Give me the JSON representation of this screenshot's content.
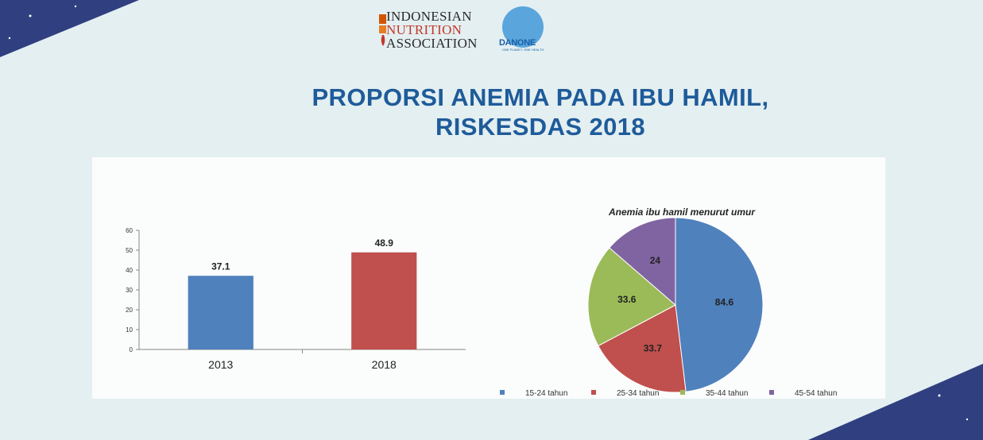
{
  "header": {
    "logo_line1": "INDONESIAN",
    "logo_line2": "NUTRITION",
    "logo_line3": "ASSOCIATION",
    "partner_logo": "DANONE",
    "partner_tagline": "ONE PLANET. ONE HEALTH"
  },
  "title_line1": "PROPORSI ANEMIA PADA IBU HAMIL,",
  "title_line2": "RISKESDAS 2018",
  "colors": {
    "background": "#e4eff1",
    "title": "#1e5b9a",
    "corner": "#2f3f7f",
    "bar_2013": "#4f81bd",
    "bar_2018": "#c0504d"
  },
  "chart_data": [
    {
      "type": "bar",
      "categories": [
        "2013",
        "2018"
      ],
      "values": [
        37.1,
        48.9
      ],
      "value_labels": [
        "37.1",
        "48.9"
      ],
      "ylim": [
        0,
        60
      ],
      "yticks": [
        "0",
        "10",
        "20",
        "30",
        "40",
        "50",
        "60"
      ],
      "colors": [
        "#4f81bd",
        "#c0504d"
      ],
      "grid": false
    },
    {
      "type": "pie",
      "title": "Anemia ibu hamil menurut umur",
      "labels": [
        "15-24 tahun",
        "25-34 tahun",
        "35-44 tahun",
        "45-54 tahun"
      ],
      "values": [
        84.6,
        33.7,
        33.6,
        24
      ],
      "value_labels": [
        "84.6",
        "33.7",
        "33.6",
        "24"
      ],
      "colors": [
        "#4f81bd",
        "#c0504d",
        "#9bbb59",
        "#8064a2"
      ],
      "legend": "bottom"
    }
  ]
}
